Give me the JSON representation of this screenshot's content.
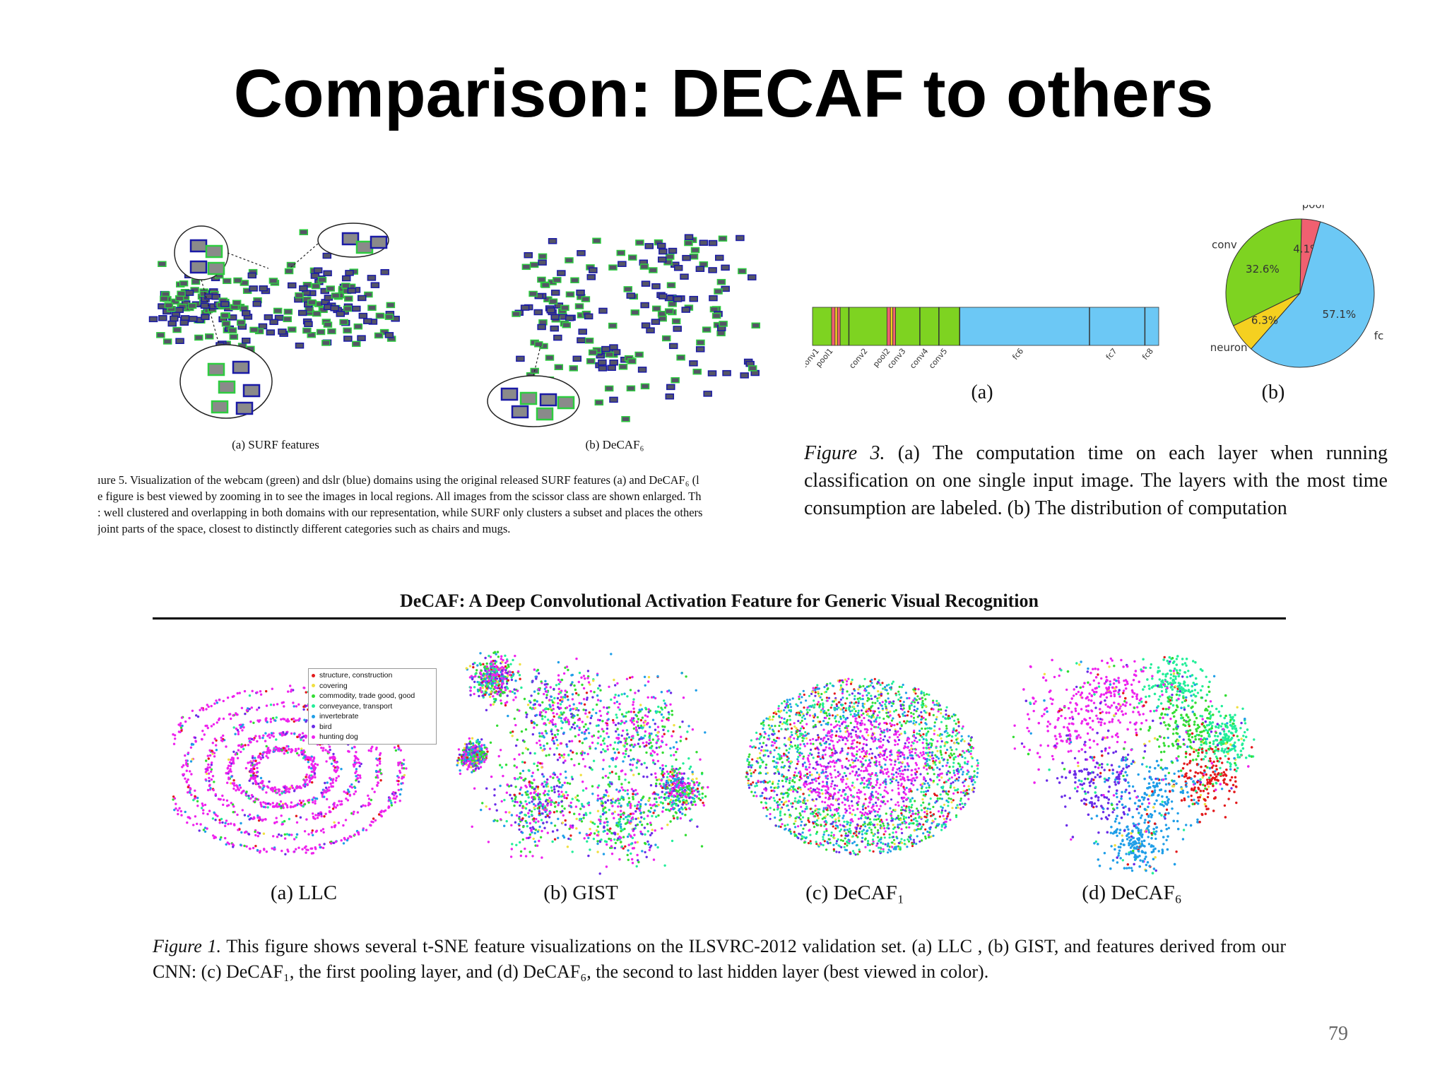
{
  "slide": {
    "title": "Comparison: DECAF to others",
    "page_number": "79"
  },
  "figure5": {
    "subcaption_a": "(a) SURF features",
    "subcaption_b": "(b) DeCAF₆",
    "caption_lines": [
      "ıure 5. Visualization of the webcam (green) and dslr (blue) domains using the original released SURF features (a) and DeCAF₆ (l",
      "e figure is best viewed by zooming in to see the images in local regions. All images from the scissor class are shown enlarged. Th",
      ": well clustered and overlapping in both domains with our representation, while SURF only clusters a subset and places the others",
      "joint parts of the space, closest to distinctly different categories such as chairs and mugs."
    ],
    "colors": {
      "webcam": "#2ecc40",
      "dslr": "#1a1aa6"
    }
  },
  "figure3": {
    "label_a": "(a)",
    "label_b": "(b)",
    "caption_label": "Figure 3.",
    "caption_text": "(a) The computation time on each layer when running classification on one single input image. The layers with the most time consumption are labeled. (b) The distribution of computation"
  },
  "paper_header": "DeCAF: A Deep Convolutional Activation Feature for Generic Visual Recognition",
  "figure1": {
    "subcaptions": [
      "(a) LLC",
      "(b) GIST",
      "(c) DeCAF₁",
      "(d) DeCAF₆"
    ],
    "caption_label": "Figure 1.",
    "caption_text": "This figure shows several t-SNE feature visualizations on the ILSVRC-2012 validation set. (a) LLC , (b) GIST, and features derived from our CNN: (c) DeCAF₁, the first pooling layer, and (d) DeCAF₆, the second to last hidden layer (best viewed in color).",
    "legend": [
      {
        "label": "structure, construction",
        "color": "#e31a1c"
      },
      {
        "label": "covering",
        "color": "#f0e040"
      },
      {
        "label": "commodity, trade good, good",
        "color": "#33dd33"
      },
      {
        "label": "conveyance, transport",
        "color": "#22ee99"
      },
      {
        "label": "invertebrate",
        "color": "#1f9ee8"
      },
      {
        "label": "bird",
        "color": "#6a2be8"
      },
      {
        "label": "hunting dog",
        "color": "#ee22ee"
      }
    ]
  },
  "chart_data": [
    {
      "type": "bar",
      "title": "",
      "orientation": "horizontal-stacked",
      "categories": [
        "conv1",
        "pool1",
        "conv2",
        "pool2",
        "conv3",
        "conv4",
        "conv5",
        "fc6",
        "fc7",
        "fc8"
      ],
      "colors": {
        "conv": "#7ed321",
        "pool": "#f06070",
        "neuron": "#f5d020",
        "fc": "#6cc8f5"
      },
      "grid": false
    },
    {
      "type": "pie",
      "title": "",
      "slices": [
        {
          "label": "conv",
          "value": 32.6,
          "color": "#7ed321"
        },
        {
          "label": "pool",
          "value": 4.1,
          "color": "#f06070"
        },
        {
          "label": "fc",
          "value": 57.1,
          "color": "#6cc8f5"
        },
        {
          "label": "neuron",
          "value": 6.3,
          "color": "#f5d020"
        }
      ],
      "value_labels": [
        "32.6%",
        "4.1%",
        "57.1%",
        "6.3%"
      ]
    }
  ]
}
